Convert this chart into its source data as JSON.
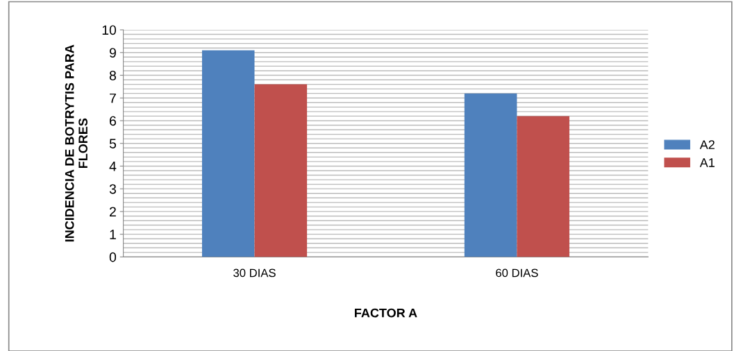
{
  "chart_data": {
    "type": "bar",
    "xlabel": "FACTOR A",
    "ylabel": "INCIDENCIA DE BOTRYTIS PARA\nFLORES",
    "categories": [
      "30 DIAS",
      "60 DIAS"
    ],
    "series": [
      {
        "name": "A2",
        "color": "#4f81bd",
        "values": [
          9.1,
          7.2
        ]
      },
      {
        "name": "A1",
        "color": "#c0504d",
        "values": [
          7.6,
          6.2
        ]
      }
    ],
    "ylim": [
      0,
      10
    ],
    "yticks": [
      0,
      1,
      2,
      3,
      4,
      5,
      6,
      7,
      8,
      9,
      10
    ],
    "grid": "y",
    "legend": "right"
  }
}
